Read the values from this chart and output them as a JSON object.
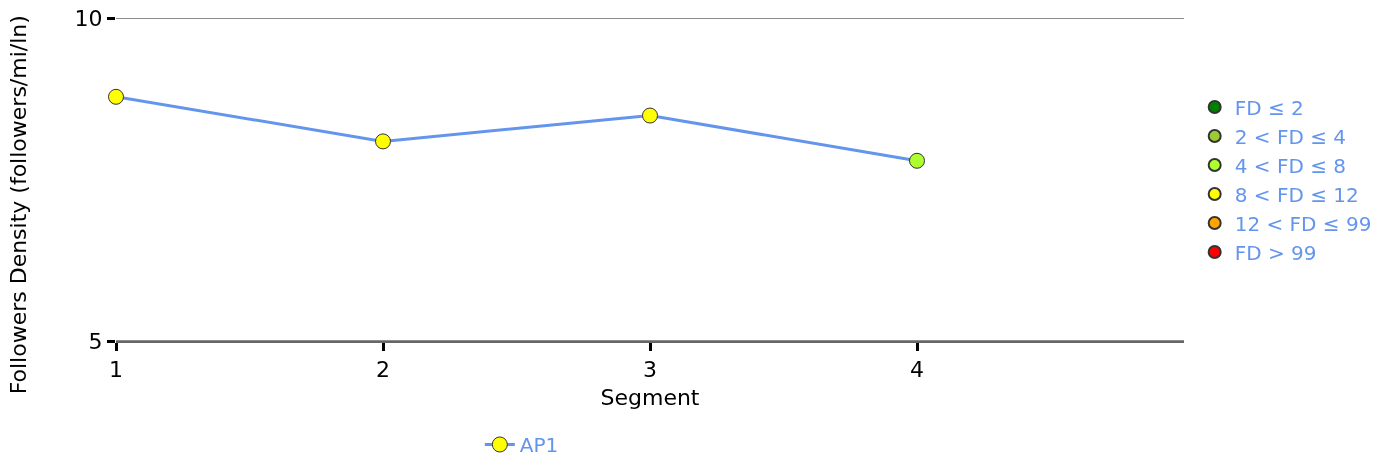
{
  "chart_data": {
    "type": "line",
    "xlabel": "Segment",
    "ylabel": "Followers Density (followers/mi/ln)",
    "x": [
      1,
      2,
      3,
      4
    ],
    "xlim": [
      1,
      5
    ],
    "xticks": [
      1,
      2,
      3,
      4
    ],
    "ylim": [
      5,
      10
    ],
    "yticks": [
      5,
      10
    ],
    "grid": "y",
    "legend": "right",
    "marker": "circle",
    "line_style": "solid",
    "series": [
      {
        "name": "AP1",
        "type": "line",
        "color": "#6495ed",
        "colors": [
          "#ffff00",
          "#ffff00",
          "#ffff00",
          "#adff2f"
        ],
        "values": [
          8.78,
          8.09,
          8.49,
          7.79
        ]
      },
      {
        "name": "FD ≤ 2",
        "type": "scatter",
        "color": "#008000",
        "values": [
          null,
          null,
          null,
          null
        ]
      },
      {
        "name": "2 < FD ≤ 4",
        "type": "scatter",
        "color": "#9acd32",
        "values": [
          null,
          null,
          null,
          null
        ]
      },
      {
        "name": "4 < FD ≤ 8",
        "type": "scatter",
        "color": "#adff2f",
        "values": [
          null,
          null,
          null,
          null
        ]
      },
      {
        "name": "8 < FD ≤ 12",
        "type": "scatter",
        "color": "#ffff00",
        "values": [
          null,
          null,
          null,
          null
        ]
      },
      {
        "name": "12 < FD ≤ 99",
        "type": "scatter",
        "color": "#ffa500",
        "values": [
          null,
          null,
          null,
          null
        ]
      },
      {
        "name": "FD > 99",
        "type": "scatter",
        "color": "#ff0000",
        "values": [
          null,
          null,
          null,
          null
        ]
      }
    ]
  }
}
